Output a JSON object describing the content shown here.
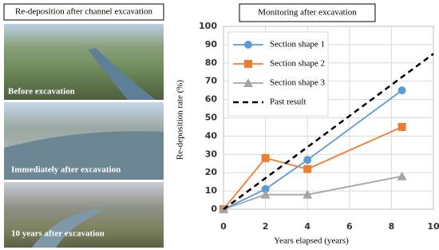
{
  "photos_panel": {
    "title": "Re-deposition after channel excavation",
    "captions": [
      "Before excavation",
      "Immediately after excavation",
      "10 years after excavation"
    ]
  },
  "chart_data": {
    "type": "line",
    "title": "Monitoring after excavation",
    "x_label": "Years elapsed (years)",
    "y_label": "Re-deposition rate (%)",
    "xlim": [
      0,
      10
    ],
    "xticks": [
      0,
      2,
      4,
      6,
      8,
      10
    ],
    "ylim": [
      0,
      100
    ],
    "yticks": [
      0,
      10,
      20,
      30,
      40,
      50,
      60,
      70,
      80,
      90,
      100
    ],
    "grid": true,
    "legend": "upper left",
    "series": [
      {
        "name": "Section shape 1",
        "color": "#5b9bd5",
        "marker": "circle",
        "x": [
          0,
          2,
          4,
          8.5
        ],
        "values": [
          0,
          11,
          27,
          65
        ]
      },
      {
        "name": "Section shape 2",
        "color": "#ed7d31",
        "marker": "square",
        "x": [
          0,
          2,
          4,
          8.5
        ],
        "values": [
          0,
          28,
          22,
          45
        ]
      },
      {
        "name": "Section shape 3",
        "color": "#a5a5a5",
        "marker": "triangle",
        "x": [
          0,
          2,
          4,
          8.5
        ],
        "values": [
          0,
          8,
          8,
          18
        ]
      },
      {
        "name": "Past result",
        "color": "#000000",
        "marker": "none",
        "dashed": true,
        "x": [
          0,
          10
        ],
        "values": [
          0,
          85
        ]
      }
    ]
  }
}
